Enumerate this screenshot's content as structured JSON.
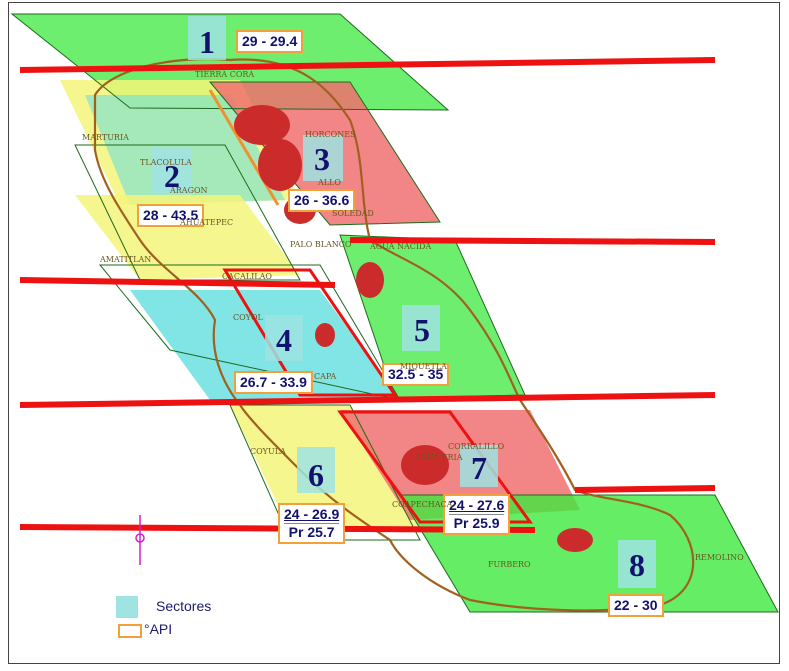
{
  "sectors": [
    {
      "number": "1",
      "api_range": "29 - 29.4"
    },
    {
      "number": "2",
      "api_range": "28 - 43.5"
    },
    {
      "number": "3",
      "api_range": "26 - 36.6"
    },
    {
      "number": "4",
      "api_range": "26.7 - 33.9"
    },
    {
      "number": "5",
      "api_range": "32.5 - 35"
    },
    {
      "number": "6",
      "api_range": "24 - 26.9",
      "api_pr": "Pr  25.7"
    },
    {
      "number": "7",
      "api_range": "24 - 27.6",
      "api_pr": "Pr  25.9"
    },
    {
      "number": "8",
      "api_range": "22 - 30"
    }
  ],
  "legend": {
    "sectores_label": "Sectores",
    "api_label": "°API",
    "sectores_color": "#9fe3e3",
    "api_color": "#f2a03a"
  },
  "colors": {
    "zone_green": "#3ee83e",
    "zone_yellow": "#f5f57a",
    "zone_red": "#f07070",
    "zone_cyan": "#62dede",
    "boundary_line": "#ee1111",
    "field_outline": "#a06020",
    "label_text": "#12126e"
  },
  "place_names": [
    "TIERRA CORA",
    "MARTURIA",
    "TLACOLULA",
    "HORCONES",
    "ARAGON",
    "AHUATEPEC",
    "AMATITLAN",
    "ALLO",
    "SOLEDAD",
    "PALO BLANCO",
    "AGUA NACIDA",
    "CACALILAO",
    "COYOL",
    "MIQUETLA",
    "CAPA",
    "COYULA",
    "AGUA FRIA",
    "CORRALILLO",
    "COAPECHACA",
    "FURBERO",
    "REMOLINO"
  ]
}
